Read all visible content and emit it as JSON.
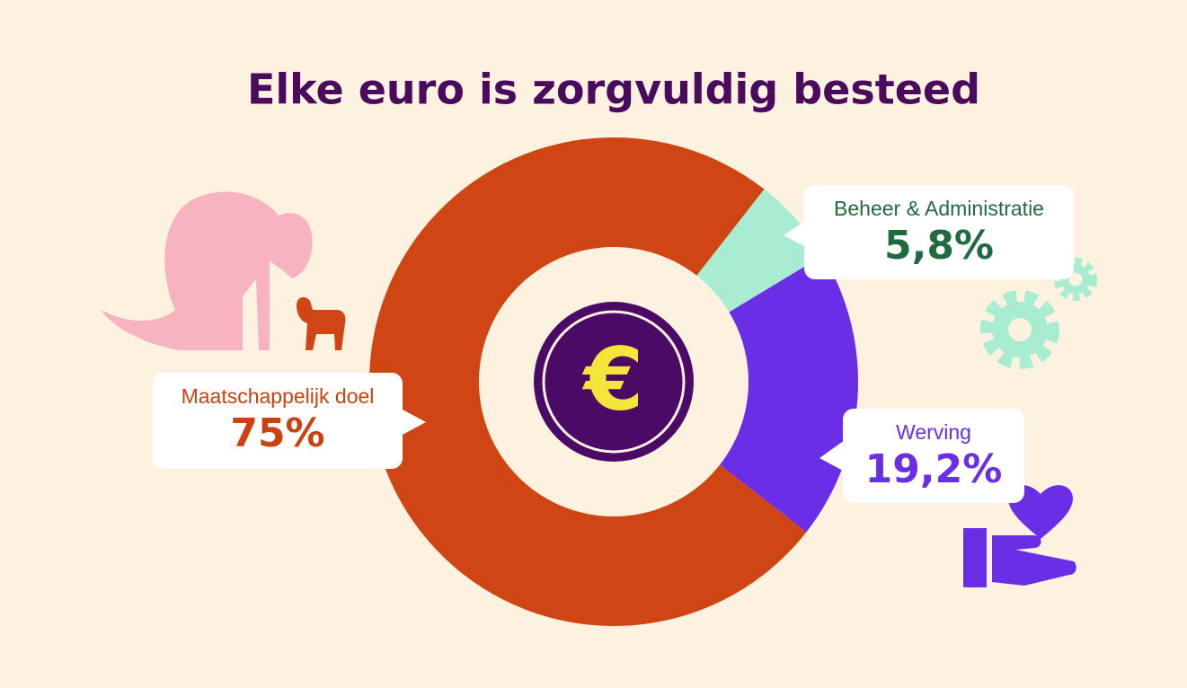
{
  "chart_data": {
    "type": "donut",
    "title": "Elke euro is zorgvuldig besteed",
    "center_label": "€",
    "categories": [
      "Beheer & Administratie",
      "Werving",
      "Maatschappelijk doel"
    ],
    "values": [
      5.8,
      19.2,
      75
    ],
    "value_labels": [
      "5,8%",
      "19,2%",
      "75%"
    ],
    "colors": [
      "#a8ecd2",
      "#6a2ee6",
      "#cf4614"
    ]
  }
}
